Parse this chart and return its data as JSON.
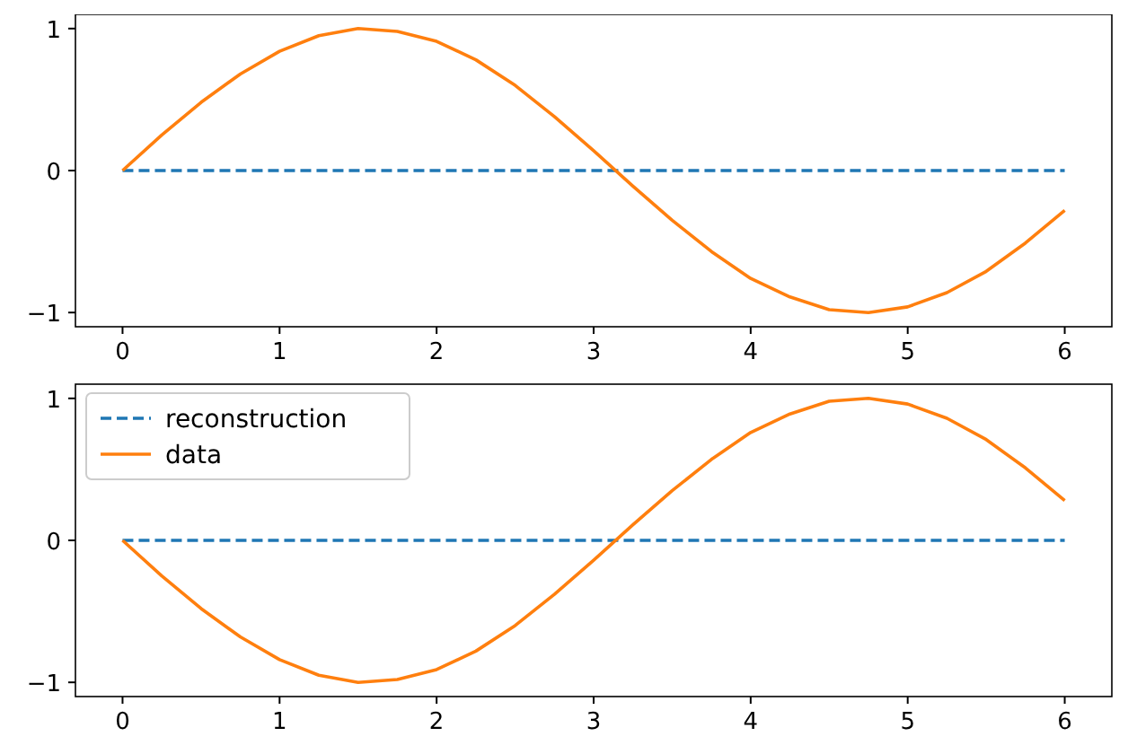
{
  "chart_data": [
    {
      "type": "line",
      "xlim": [
        -0.3,
        6.3
      ],
      "ylim": [
        -1.1,
        1.1
      ],
      "xticks": [
        0,
        1,
        2,
        3,
        4,
        5,
        6
      ],
      "yticks": [
        -1,
        0,
        1
      ],
      "legend": false,
      "series": [
        {
          "color": "#1f77b4",
          "line_style": "dashed",
          "x": [
            0,
            6
          ],
          "values": [
            0,
            0
          ]
        },
        {
          "color": "#ff7f0e",
          "line_style": "solid",
          "x": [
            0,
            0.25,
            0.5,
            0.75,
            1,
            1.25,
            1.5,
            1.75,
            2,
            2.25,
            2.5,
            2.75,
            3,
            3.25,
            3.5,
            3.75,
            4,
            4.25,
            4.5,
            4.75,
            5,
            5.25,
            5.5,
            5.75,
            6
          ],
          "values": [
            0,
            0.25,
            0.48,
            0.68,
            0.84,
            0.95,
            1.0,
            0.98,
            0.91,
            0.78,
            0.6,
            0.38,
            0.14,
            -0.11,
            -0.35,
            -0.57,
            -0.76,
            -0.89,
            -0.98,
            -1.0,
            -0.96,
            -0.86,
            -0.71,
            -0.51,
            -0.28
          ]
        }
      ]
    },
    {
      "type": "line",
      "xlim": [
        -0.3,
        6.3
      ],
      "ylim": [
        -1.1,
        1.1
      ],
      "xticks": [
        0,
        1,
        2,
        3,
        4,
        5,
        6
      ],
      "yticks": [
        -1,
        0,
        1
      ],
      "legend": "top left",
      "series": [
        {
          "name": "reconstruction",
          "color": "#1f77b4",
          "line_style": "dashed",
          "x": [
            0,
            6
          ],
          "values": [
            0,
            0
          ]
        },
        {
          "name": "data",
          "color": "#ff7f0e",
          "line_style": "solid",
          "x": [
            0,
            0.25,
            0.5,
            0.75,
            1,
            1.25,
            1.5,
            1.75,
            2,
            2.25,
            2.5,
            2.75,
            3,
            3.25,
            3.5,
            3.75,
            4,
            4.25,
            4.5,
            4.75,
            5,
            5.25,
            5.5,
            5.75,
            6
          ],
          "values": [
            0,
            -0.25,
            -0.48,
            -0.68,
            -0.84,
            -0.95,
            -1.0,
            -0.98,
            -0.91,
            -0.78,
            -0.6,
            -0.38,
            -0.14,
            0.11,
            0.35,
            0.57,
            0.76,
            0.89,
            0.98,
            1.0,
            0.96,
            0.86,
            0.71,
            0.51,
            0.28
          ]
        }
      ]
    }
  ]
}
